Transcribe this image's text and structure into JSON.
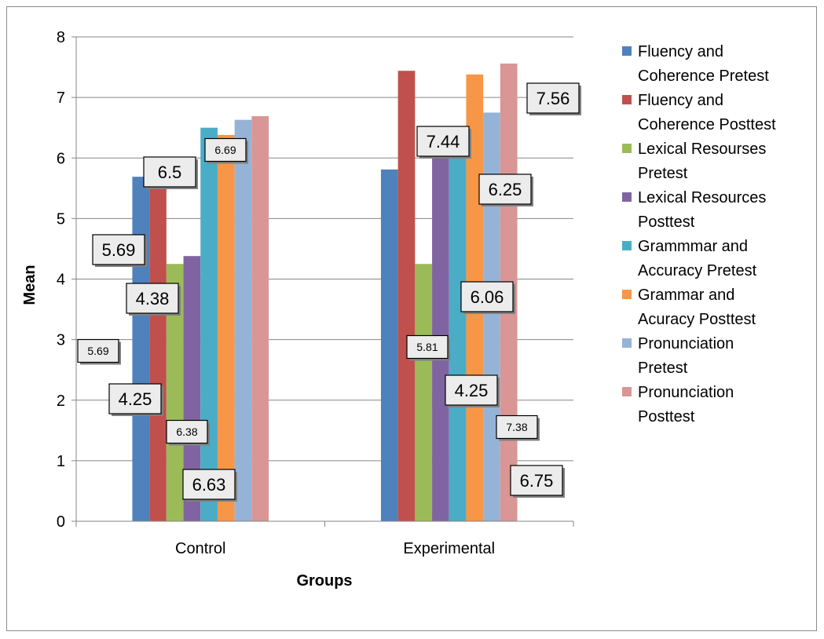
{
  "chart_data": {
    "type": "bar",
    "categories": [
      "Control",
      "Experimental"
    ],
    "xlabel": "Groups",
    "ylabel": "Mean",
    "ylim": [
      0,
      8
    ],
    "yticks": [
      0,
      1,
      2,
      3,
      4,
      5,
      6,
      7,
      8
    ],
    "grid": true,
    "legend_position": "right",
    "series": [
      {
        "name": "Fluency and Coherence Pretest",
        "legend_lines": [
          "Fluency and",
          "Coherence Pretest"
        ],
        "color": "#4F81BD",
        "values": [
          5.69,
          5.81
        ]
      },
      {
        "name": "Fluency and Coherence Posttest",
        "legend_lines": [
          "Fluency and",
          "Coherence Posttest"
        ],
        "color": "#C0504D",
        "values": [
          5.69,
          7.44
        ]
      },
      {
        "name": "Lexical Resourses Pretest",
        "legend_lines": [
          "Lexical Resourses",
          "Pretest"
        ],
        "color": "#9BBB59",
        "values": [
          4.25,
          4.25
        ]
      },
      {
        "name": "Lexical Resources Posttest",
        "legend_lines": [
          "Lexical Resources",
          "Posttest"
        ],
        "color": "#8064A2",
        "values": [
          4.38,
          6.06
        ]
      },
      {
        "name": "Grammmar and Accuracy Pretest",
        "legend_lines": [
          "Grammmar and",
          "Accuracy Pretest"
        ],
        "color": "#4BACC6",
        "values": [
          6.5,
          6.25
        ]
      },
      {
        "name": "Grammar and Acuracy Posttest",
        "legend_lines": [
          "Grammar and",
          "Acuracy Posttest"
        ],
        "color": "#F79646",
        "values": [
          6.38,
          7.38
        ]
      },
      {
        "name": "Pronunciation Pretest",
        "legend_lines": [
          "Pronunciation",
          "Pretest"
        ],
        "color": "#95B3D7",
        "values": [
          6.63,
          6.75
        ]
      },
      {
        "name": "Pronunciation Posttest",
        "legend_lines": [
          "Pronunciation",
          "Posttest"
        ],
        "color": "#D99694",
        "values": [
          6.69,
          7.56
        ]
      }
    ]
  }
}
